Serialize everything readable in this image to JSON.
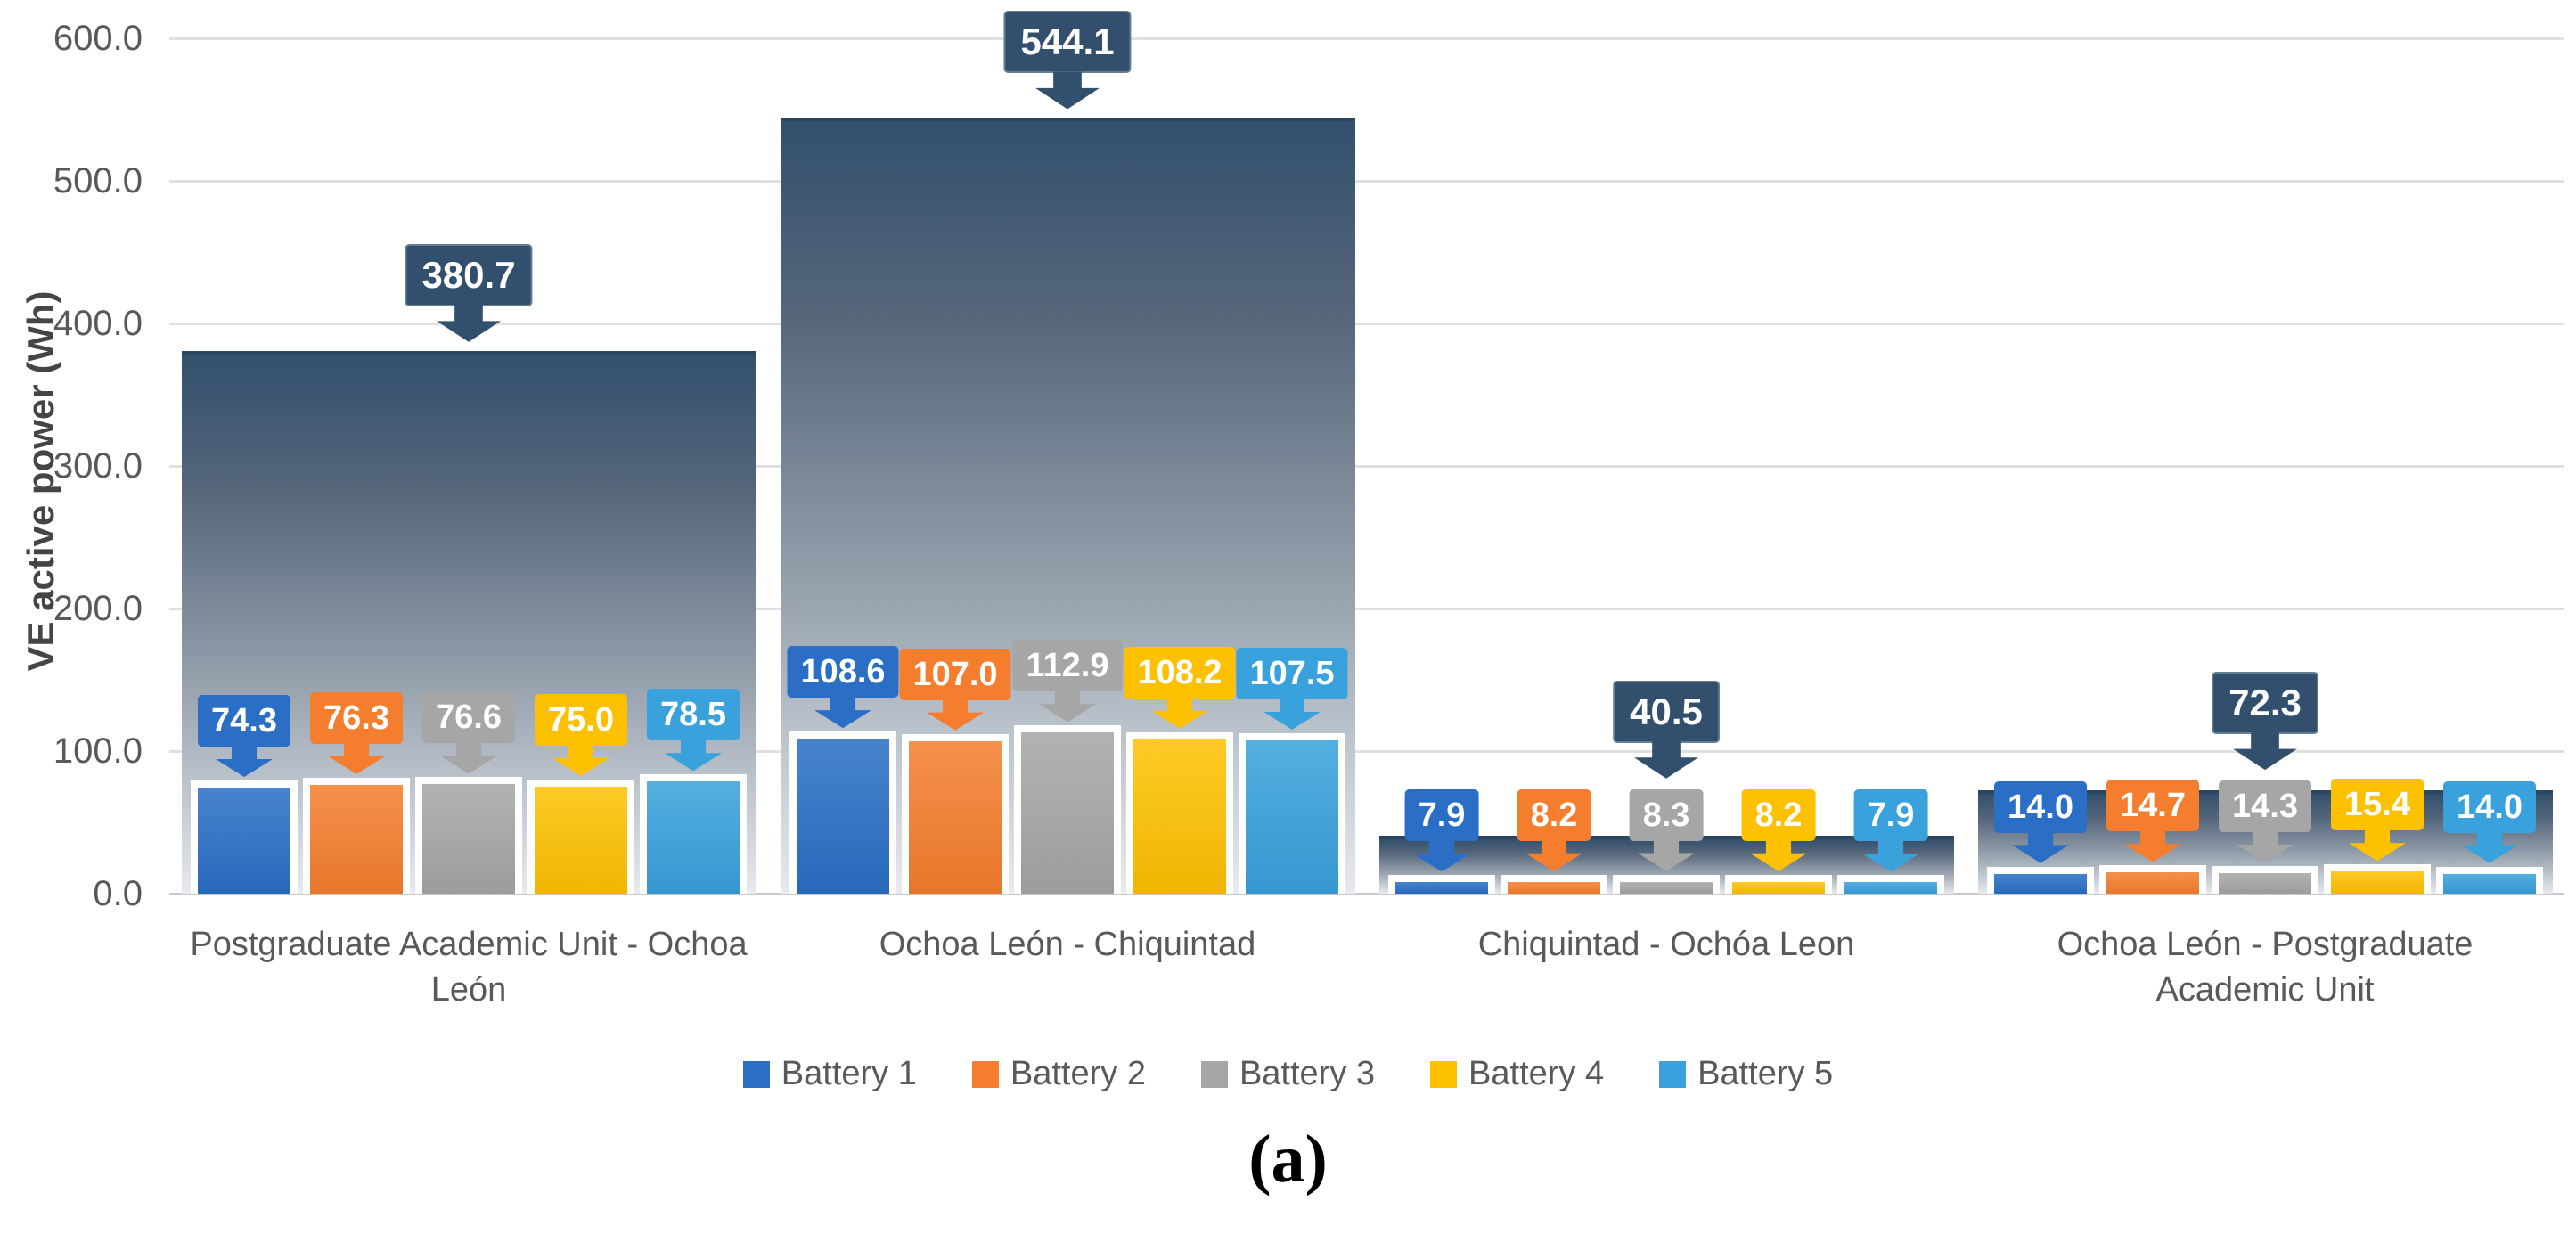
{
  "figure": {
    "caption": "(a)",
    "background": "#FFFFFF"
  },
  "chart_data": {
    "type": "bar",
    "title": "",
    "xlabel": "",
    "ylabel": "VE active power (Wh)",
    "ylim": [
      0,
      600
    ],
    "grid": true,
    "grid_color": "#E0E0E0",
    "legend_position": "bottom",
    "yticks": [
      {
        "label": "0.0",
        "value": 0
      },
      {
        "label": "100.0",
        "value": 100
      },
      {
        "label": "200.0",
        "value": 200
      },
      {
        "label": "300.0",
        "value": 300
      },
      {
        "label": "400.0",
        "value": 400
      },
      {
        "label": "500.0",
        "value": 500
      },
      {
        "label": "600.0",
        "value": 600
      }
    ],
    "categories": [
      "Postgraduate Academic Unit - Ochoa León",
      "Ochoa León - Chiquintad",
      "Chiquintad - Ochóa Leon",
      "Ochoa León - Postgraduate Academic Unit"
    ],
    "series": [
      {
        "name": "Battery 1",
        "color": "#2A6FC5",
        "values": [
          74.3,
          108.6,
          7.9,
          14.0
        ]
      },
      {
        "name": "Battery 2",
        "color": "#F57E2E",
        "values": [
          76.3,
          107.0,
          8.2,
          14.7
        ]
      },
      {
        "name": "Battery 3",
        "color": "#A6A6A6",
        "values": [
          76.6,
          112.9,
          8.3,
          14.3
        ]
      },
      {
        "name": "Battery 4",
        "color": "#FEC102",
        "values": [
          75.0,
          108.2,
          8.2,
          15.4
        ]
      },
      {
        "name": "Battery 5",
        "color": "#39A1DC",
        "values": [
          78.5,
          107.5,
          7.9,
          14.0
        ]
      }
    ],
    "total_overlay": {
      "values": [
        380.7,
        544.1,
        40.5,
        72.3
      ],
      "label_color": "#32506E",
      "bar_gradient_top": "#33506C",
      "bar_gradient_bottom": "#E7EAEE"
    },
    "value_label_style": "callout-arrow-box",
    "value_label_decimals": 1
  }
}
